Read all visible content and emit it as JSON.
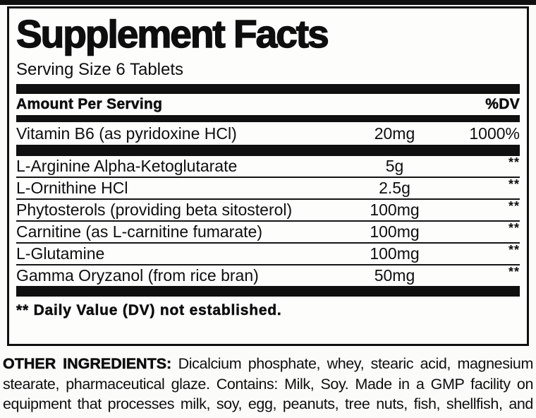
{
  "label": {
    "title": "Supplement Facts",
    "serving_size": "Serving Size 6 Tablets",
    "header": {
      "amount_per_serving": "Amount Per Serving",
      "dv": "%DV"
    },
    "vitamin_row": {
      "name": "Vitamin B6 (as pyridoxine HCl)",
      "amount": "20mg",
      "dv": "1000%"
    },
    "rows": [
      {
        "name": "L-Arginine Alpha-Ketoglutarate",
        "amount": "5g",
        "dv": "**"
      },
      {
        "name": "L-Ornithine HCl",
        "amount": "2.5g",
        "dv": "**"
      },
      {
        "name": "Phytosterols (providing beta sitosterol)",
        "amount": "100mg",
        "dv": "**"
      },
      {
        "name": "Carnitine (as L-carnitine fumarate)",
        "amount": "100mg",
        "dv": "**"
      },
      {
        "name": "L-Glutamine",
        "amount": "100mg",
        "dv": "**"
      },
      {
        "name": "Gamma Oryzanol (from rice bran)",
        "amount": "50mg",
        "dv": "**"
      }
    ],
    "footnote": "** Daily Value (DV) not established."
  },
  "other_ingredients": {
    "label": "OTHER INGREDIENTS:",
    "text": "Dicalcium phosphate, whey, stearic acid, magnesium stearate, pharmaceutical glaze. Contains: Milk, Soy. Made in a GMP facility on equipment that processes milk, soy, egg, peanuts, tree nuts, fish, shellfish, and wheat."
  },
  "colors": {
    "ink": "#101010",
    "background": "#fbfbf9"
  }
}
